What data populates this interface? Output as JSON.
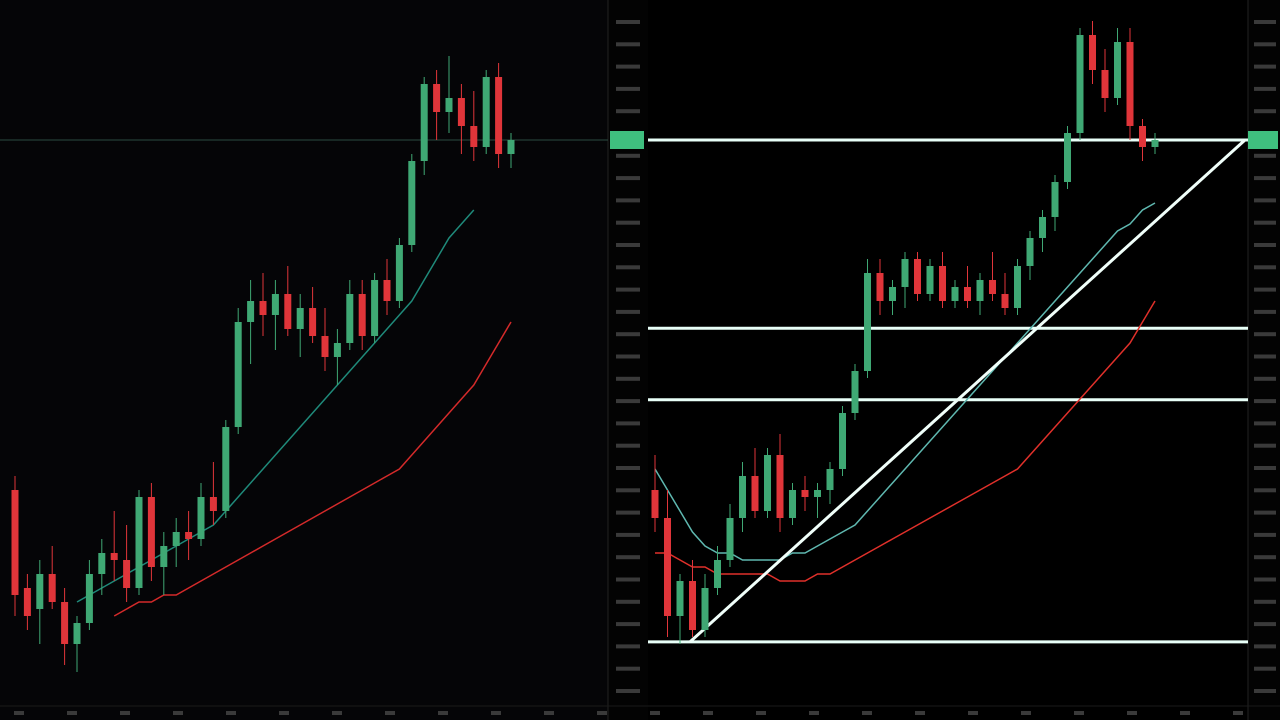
{
  "chart_data": [
    {
      "type": "candlestick",
      "ylim": [
        0,
        100
      ],
      "up_color": "#3fa874",
      "down_color": "#e0353a",
      "ohlc": [
        [
          30,
          32,
          12,
          15
        ],
        [
          16,
          18,
          10,
          12
        ],
        [
          13,
          20,
          8,
          18
        ],
        [
          18,
          22,
          13,
          14
        ],
        [
          14,
          16,
          5,
          8
        ],
        [
          8,
          12,
          4,
          11
        ],
        [
          11,
          20,
          10,
          18
        ],
        [
          18,
          23,
          15,
          21
        ],
        [
          21,
          27,
          17,
          20
        ],
        [
          20,
          25,
          14,
          16
        ],
        [
          16,
          30,
          15,
          29
        ],
        [
          29,
          31,
          17,
          19
        ],
        [
          19,
          24,
          15,
          22
        ],
        [
          22,
          26,
          19,
          24
        ],
        [
          24,
          27,
          20,
          23
        ],
        [
          23,
          31,
          22,
          29
        ],
        [
          29,
          34,
          25,
          27
        ],
        [
          27,
          40,
          26,
          39
        ],
        [
          39,
          56,
          38,
          54
        ],
        [
          54,
          60,
          48,
          57
        ],
        [
          57,
          61,
          52,
          55
        ],
        [
          55,
          60,
          50,
          58
        ],
        [
          58,
          62,
          52,
          53
        ],
        [
          53,
          58,
          49,
          56
        ],
        [
          56,
          59,
          51,
          52
        ],
        [
          52,
          56,
          47,
          49
        ],
        [
          49,
          53,
          45,
          51
        ],
        [
          51,
          60,
          50,
          58
        ],
        [
          58,
          60,
          50,
          52
        ],
        [
          52,
          61,
          51,
          60
        ],
        [
          60,
          63,
          55,
          57
        ],
        [
          57,
          66,
          56,
          65
        ],
        [
          65,
          78,
          64,
          77
        ],
        [
          77,
          89,
          75,
          88
        ],
        [
          88,
          90,
          80,
          84
        ],
        [
          84,
          92,
          81,
          86
        ],
        [
          86,
          88,
          78,
          82
        ],
        [
          82,
          87,
          77,
          79
        ],
        [
          79,
          90,
          78,
          89
        ],
        [
          89,
          91,
          76,
          78
        ],
        [
          78,
          81,
          76,
          80
        ]
      ],
      "series": [
        {
          "color": "#1f8a7a",
          "values": [
            null,
            null,
            null,
            null,
            null,
            14,
            15,
            16,
            17,
            18,
            19,
            20,
            21,
            22,
            23,
            24,
            25,
            27,
            29,
            31,
            33,
            35,
            37,
            39,
            41,
            43,
            45,
            47,
            49,
            51,
            53,
            55,
            57,
            60,
            63,
            66,
            68,
            70,
            null,
            null,
            null
          ]
        },
        {
          "color": "#d42a2a",
          "values": [
            null,
            null,
            null,
            null,
            null,
            null,
            null,
            null,
            12,
            13,
            14,
            14,
            15,
            15,
            16,
            17,
            18,
            19,
            20,
            21,
            22,
            23,
            24,
            25,
            26,
            27,
            28,
            29,
            30,
            31,
            32,
            33,
            35,
            37,
            39,
            41,
            43,
            45,
            48,
            51,
            54
          ]
        }
      ],
      "levels": [
        80
      ]
    },
    {
      "type": "candlestick",
      "ylim": [
        0,
        100
      ],
      "up_color": "#3fa874",
      "down_color": "#e0353a",
      "ohlc": [
        [
          30,
          35,
          24,
          26
        ],
        [
          26,
          30,
          9,
          12
        ],
        [
          12,
          18,
          8,
          17
        ],
        [
          17,
          20,
          9,
          10
        ],
        [
          10,
          18,
          9,
          16
        ],
        [
          16,
          22,
          15,
          20
        ],
        [
          20,
          28,
          19,
          26
        ],
        [
          26,
          34,
          24,
          32
        ],
        [
          32,
          36,
          26,
          27
        ],
        [
          27,
          36,
          26,
          35
        ],
        [
          35,
          38,
          24,
          26
        ],
        [
          26,
          31,
          25,
          30
        ],
        [
          30,
          32,
          27,
          29
        ],
        [
          29,
          31,
          26,
          30
        ],
        [
          30,
          34,
          28,
          33
        ],
        [
          33,
          42,
          32,
          41
        ],
        [
          41,
          48,
          40,
          47
        ],
        [
          47,
          63,
          46,
          61
        ],
        [
          61,
          63,
          55,
          57
        ],
        [
          57,
          60,
          55,
          59
        ],
        [
          59,
          64,
          56,
          63
        ],
        [
          63,
          64,
          57,
          58
        ],
        [
          58,
          63,
          57,
          62
        ],
        [
          62,
          64,
          56,
          57
        ],
        [
          57,
          60,
          56,
          59
        ],
        [
          59,
          62,
          56,
          57
        ],
        [
          57,
          61,
          55,
          60
        ],
        [
          60,
          64,
          57,
          58
        ],
        [
          58,
          61,
          55,
          56
        ],
        [
          56,
          63,
          55,
          62
        ],
        [
          62,
          67,
          60,
          66
        ],
        [
          66,
          70,
          64,
          69
        ],
        [
          69,
          75,
          67,
          74
        ],
        [
          74,
          82,
          73,
          81
        ],
        [
          81,
          96,
          80,
          95
        ],
        [
          95,
          97,
          88,
          90
        ],
        [
          90,
          93,
          84,
          86
        ],
        [
          86,
          96,
          85,
          94
        ],
        [
          94,
          96,
          80,
          82
        ],
        [
          82,
          83,
          77,
          79
        ],
        [
          79,
          81,
          78,
          80
        ]
      ],
      "series": [
        {
          "color": "#5fb8b0",
          "values": [
            33,
            30,
            27,
            24,
            22,
            21,
            21,
            20,
            20,
            20,
            20,
            21,
            21,
            22,
            23,
            24,
            25,
            27,
            29,
            31,
            33,
            35,
            37,
            39,
            41,
            43,
            45,
            47,
            49,
            51,
            53,
            55,
            57,
            59,
            61,
            63,
            65,
            67,
            68,
            70,
            71
          ]
        },
        {
          "color": "#e0302a",
          "values": [
            21,
            21,
            20,
            19,
            19,
            18,
            18,
            18,
            18,
            18,
            17,
            17,
            17,
            18,
            18,
            19,
            20,
            21,
            22,
            23,
            24,
            25,
            26,
            27,
            28,
            29,
            30,
            31,
            32,
            33,
            35,
            37,
            39,
            41,
            43,
            45,
            47,
            49,
            51,
            54,
            57
          ]
        }
      ],
      "levels": [
        80,
        53.1,
        42.9,
        8.3
      ],
      "trendline": [
        [
          2.8,
          8.3
        ],
        [
          47.2,
          80
        ]
      ]
    }
  ]
}
